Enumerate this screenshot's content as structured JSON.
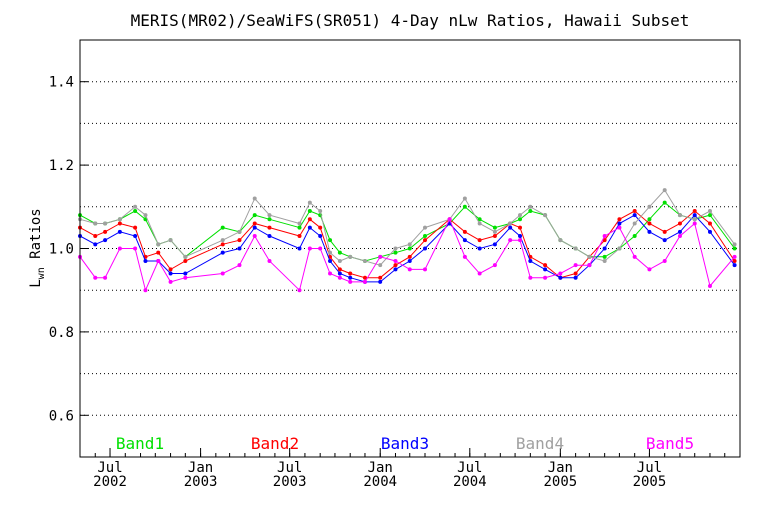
{
  "chart_data": {
    "type": "line",
    "title": "MERIS(MR02)/SeaWiFS(SR051) 4-Day nLw Ratios, Hawaii Subset",
    "ylabel_main": "L",
    "ylabel_sub": "wn",
    "ylabel_rest": " Ratios",
    "xlim": [
      "2002-05-01",
      "2006-01-01"
    ],
    "ylim": [
      0.5,
      1.5
    ],
    "yticks": [
      "0.6",
      "0.8",
      "1.0",
      "1.2",
      "1.4"
    ],
    "ytick_values": [
      0.6,
      0.8,
      1.0,
      1.2,
      1.4
    ],
    "grid_values": [
      0.6,
      0.7,
      0.8,
      0.9,
      1.0,
      1.1,
      1.2,
      1.3,
      1.4
    ],
    "grid": "dotted",
    "xticks": [
      {
        "date": "2002-07-01",
        "month": "Jul",
        "year": "2002"
      },
      {
        "date": "2003-01-01",
        "month": "Jan",
        "year": "2003"
      },
      {
        "date": "2003-07-01",
        "month": "Jul",
        "year": "2003"
      },
      {
        "date": "2004-01-01",
        "month": "Jan",
        "year": "2004"
      },
      {
        "date": "2004-07-01",
        "month": "Jul",
        "year": "2004"
      },
      {
        "date": "2005-01-01",
        "month": "Jan",
        "year": "2005"
      },
      {
        "date": "2005-07-01",
        "month": "Jul",
        "year": "2005"
      }
    ],
    "x": [
      "2002-05-01",
      "2002-06-01",
      "2002-06-21",
      "2002-07-21",
      "2002-08-21",
      "2002-09-11",
      "2002-10-07",
      "2002-11-01",
      "2002-12-01",
      "2003-02-15",
      "2003-03-21",
      "2003-04-21",
      "2003-05-21",
      "2003-07-21",
      "2003-08-11",
      "2003-09-01",
      "2003-09-21",
      "2003-10-11",
      "2003-11-01",
      "2003-12-01",
      "2004-01-01",
      "2004-02-01",
      "2004-03-01",
      "2004-04-01",
      "2004-05-21",
      "2004-06-21",
      "2004-07-21",
      "2004-08-21",
      "2004-09-21",
      "2004-10-11",
      "2004-11-01",
      "2004-12-01",
      "2005-01-01",
      "2005-02-01",
      "2005-03-01",
      "2005-04-01",
      "2005-05-01",
      "2005-06-01",
      "2005-07-01",
      "2005-08-01",
      "2005-09-01",
      "2005-10-01",
      "2005-11-01",
      "2005-12-21"
    ],
    "series": [
      {
        "name": "Band1",
        "color": "#00e000",
        "values": [
          1.08,
          1.06,
          1.06,
          1.07,
          1.09,
          1.07,
          1.01,
          1.02,
          0.98,
          1.05,
          1.04,
          1.08,
          1.07,
          1.05,
          1.09,
          1.08,
          1.02,
          0.99,
          0.98,
          0.97,
          0.98,
          0.99,
          1.0,
          1.03,
          1.06,
          1.1,
          1.07,
          1.05,
          1.06,
          1.07,
          1.09,
          1.08,
          1.02,
          1.0,
          0.98,
          0.98,
          1.0,
          1.03,
          1.07,
          1.11,
          1.08,
          1.07,
          1.08,
          1.0
        ]
      },
      {
        "name": "Band2",
        "color": "#ff0000",
        "values": [
          1.05,
          1.03,
          1.04,
          1.06,
          1.05,
          0.98,
          0.99,
          0.95,
          0.97,
          1.01,
          1.02,
          1.06,
          1.05,
          1.03,
          1.07,
          1.05,
          0.98,
          0.95,
          0.94,
          0.93,
          0.93,
          0.96,
          0.98,
          1.02,
          1.07,
          1.04,
          1.02,
          1.03,
          1.06,
          1.05,
          0.98,
          0.96,
          0.93,
          0.94,
          0.98,
          1.02,
          1.07,
          1.09,
          1.06,
          1.04,
          1.06,
          1.09,
          1.06,
          0.97
        ]
      },
      {
        "name": "Band3",
        "color": "#0000ff",
        "values": [
          1.03,
          1.01,
          1.02,
          1.04,
          1.03,
          0.97,
          0.97,
          0.94,
          0.94,
          0.99,
          1.0,
          1.05,
          1.03,
          1.0,
          1.05,
          1.03,
          0.97,
          0.94,
          0.93,
          0.92,
          0.92,
          0.95,
          0.97,
          1.0,
          1.06,
          1.02,
          1.0,
          1.01,
          1.05,
          1.03,
          0.97,
          0.95,
          0.93,
          0.93,
          0.96,
          1.0,
          1.06,
          1.08,
          1.04,
          1.02,
          1.04,
          1.08,
          1.04,
          0.96
        ]
      },
      {
        "name": "Band4",
        "color": "#a0a0a0",
        "values": [
          1.07,
          1.06,
          1.06,
          1.07,
          1.1,
          1.08,
          1.01,
          1.02,
          0.98,
          1.02,
          1.04,
          1.12,
          1.08,
          1.06,
          1.11,
          1.09,
          0.99,
          0.97,
          0.98,
          0.97,
          0.96,
          1.0,
          1.01,
          1.05,
          1.07,
          1.12,
          1.06,
          1.04,
          1.06,
          1.08,
          1.1,
          1.08,
          1.02,
          1.0,
          0.98,
          0.97,
          1.0,
          1.06,
          1.1,
          1.14,
          1.08,
          1.07,
          1.09,
          1.01
        ]
      },
      {
        "name": "Band5",
        "color": "#ff00ff",
        "values": [
          0.98,
          0.93,
          0.93,
          1.0,
          1.0,
          0.9,
          0.97,
          0.92,
          0.93,
          0.94,
          0.96,
          1.03,
          0.97,
          0.9,
          1.0,
          1.0,
          0.94,
          0.93,
          0.92,
          0.92,
          0.98,
          0.97,
          0.95,
          0.95,
          1.07,
          0.98,
          0.94,
          0.96,
          1.02,
          1.02,
          0.93,
          0.93,
          0.94,
          0.96,
          0.96,
          1.03,
          1.05,
          0.98,
          0.95,
          0.97,
          1.03,
          1.06,
          0.91,
          0.98
        ]
      }
    ],
    "legend": [
      "Band1",
      "Band2",
      "Band3",
      "Band4",
      "Band5"
    ],
    "legend_placement": "bottom"
  }
}
